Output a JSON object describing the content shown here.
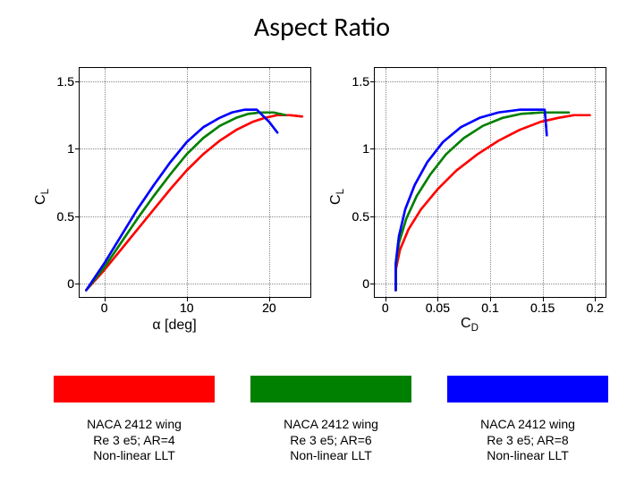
{
  "title": "Aspect Ratio",
  "colors": {
    "red": "#ff0000",
    "green": "#008000",
    "blue": "#0000ff",
    "grid": "#888888",
    "axis": "#000000",
    "background": "#ffffff"
  },
  "line_width": 2.5,
  "left_chart": {
    "type": "line",
    "ylabel_html": "C<sub>L</sub>",
    "xlabel_html": "&alpha; [deg]",
    "xlim": [
      -3,
      25
    ],
    "ylim": [
      -0.1,
      1.6
    ],
    "xticks": [
      0,
      10,
      20
    ],
    "yticks": [
      0,
      0.5,
      1,
      1.5
    ],
    "grid": true,
    "series": [
      {
        "name": "AR=4",
        "color_key": "red",
        "points": [
          [
            -2.2,
            -0.05
          ],
          [
            0,
            0.1
          ],
          [
            2,
            0.25
          ],
          [
            4,
            0.4
          ],
          [
            6,
            0.55
          ],
          [
            8,
            0.7
          ],
          [
            10,
            0.84
          ],
          [
            12,
            0.96
          ],
          [
            14,
            1.06
          ],
          [
            16,
            1.14
          ],
          [
            18,
            1.2
          ],
          [
            19.5,
            1.23
          ],
          [
            21,
            1.25
          ],
          [
            22.5,
            1.25
          ],
          [
            24,
            1.24
          ]
        ]
      },
      {
        "name": "AR=6",
        "color_key": "green",
        "points": [
          [
            -2.2,
            -0.05
          ],
          [
            0,
            0.12
          ],
          [
            2,
            0.3
          ],
          [
            4,
            0.48
          ],
          [
            6,
            0.65
          ],
          [
            8,
            0.81
          ],
          [
            10,
            0.96
          ],
          [
            12,
            1.08
          ],
          [
            14,
            1.17
          ],
          [
            16,
            1.23
          ],
          [
            17.5,
            1.26
          ],
          [
            19,
            1.27
          ],
          [
            20.5,
            1.27
          ],
          [
            22,
            1.25
          ]
        ]
      },
      {
        "name": "AR=8",
        "color_key": "blue",
        "points": [
          [
            -2.2,
            -0.05
          ],
          [
            0,
            0.15
          ],
          [
            2,
            0.35
          ],
          [
            4,
            0.55
          ],
          [
            6,
            0.73
          ],
          [
            8,
            0.9
          ],
          [
            10,
            1.05
          ],
          [
            12,
            1.16
          ],
          [
            14,
            1.23
          ],
          [
            15.5,
            1.27
          ],
          [
            17,
            1.29
          ],
          [
            18.5,
            1.29
          ],
          [
            20,
            1.2
          ],
          [
            21,
            1.12
          ]
        ]
      }
    ]
  },
  "right_chart": {
    "type": "line",
    "ylabel_html": "C<sub>L</sub>",
    "xlabel_html": "C<sub>D</sub>",
    "xlim": [
      -0.01,
      0.21
    ],
    "ylim": [
      -0.1,
      1.6
    ],
    "xticks": [
      0,
      0.05,
      0.1,
      0.15,
      0.2
    ],
    "yticks": [
      0,
      0.5,
      1,
      1.5
    ],
    "grid": true,
    "series": [
      {
        "name": "AR=4",
        "color_key": "red",
        "points": [
          [
            0.01,
            -0.05
          ],
          [
            0.01,
            0.1
          ],
          [
            0.014,
            0.25
          ],
          [
            0.022,
            0.4
          ],
          [
            0.034,
            0.55
          ],
          [
            0.05,
            0.7
          ],
          [
            0.068,
            0.84
          ],
          [
            0.088,
            0.96
          ],
          [
            0.108,
            1.06
          ],
          [
            0.128,
            1.14
          ],
          [
            0.148,
            1.2
          ],
          [
            0.165,
            1.23
          ],
          [
            0.18,
            1.25
          ],
          [
            0.195,
            1.25
          ]
        ]
      },
      {
        "name": "AR=6",
        "color_key": "green",
        "points": [
          [
            0.01,
            -0.05
          ],
          [
            0.01,
            0.12
          ],
          [
            0.013,
            0.3
          ],
          [
            0.02,
            0.48
          ],
          [
            0.03,
            0.65
          ],
          [
            0.043,
            0.81
          ],
          [
            0.058,
            0.96
          ],
          [
            0.075,
            1.08
          ],
          [
            0.093,
            1.17
          ],
          [
            0.112,
            1.23
          ],
          [
            0.13,
            1.26
          ],
          [
            0.15,
            1.27
          ],
          [
            0.175,
            1.27
          ]
        ]
      },
      {
        "name": "AR=8",
        "color_key": "blue",
        "points": [
          [
            0.01,
            -0.05
          ],
          [
            0.01,
            0.15
          ],
          [
            0.013,
            0.35
          ],
          [
            0.019,
            0.55
          ],
          [
            0.028,
            0.73
          ],
          [
            0.04,
            0.9
          ],
          [
            0.055,
            1.05
          ],
          [
            0.072,
            1.16
          ],
          [
            0.09,
            1.23
          ],
          [
            0.108,
            1.27
          ],
          [
            0.128,
            1.29
          ],
          [
            0.152,
            1.29
          ],
          [
            0.153,
            1.2
          ],
          [
            0.154,
            1.1
          ]
        ]
      }
    ]
  },
  "legend": [
    {
      "color_key": "red",
      "caption_l1": "NACA 2412 wing",
      "caption_l2": "Re 3 e5; AR=4",
      "caption_l3": "Non-linear LLT"
    },
    {
      "color_key": "green",
      "caption_l1": "NACA 2412 wing",
      "caption_l2": "Re 3 e5; AR=6",
      "caption_l3": "Non-linear LLT"
    },
    {
      "color_key": "blue",
      "caption_l1": "NACA 2412 wing",
      "caption_l2": "Re 3 e5; AR=8",
      "caption_l3": "Non-linear LLT"
    }
  ]
}
